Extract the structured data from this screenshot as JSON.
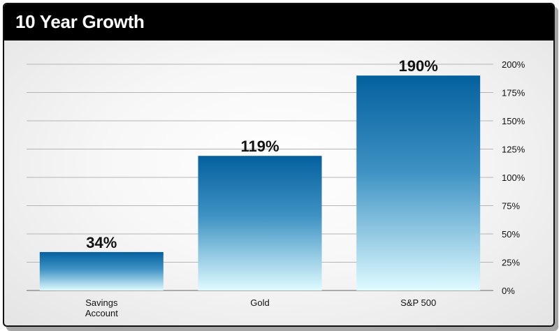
{
  "header": {
    "title": "10 Year Growth"
  },
  "chart_data": {
    "type": "bar",
    "title": "10 Year Growth",
    "xlabel": "",
    "ylabel": "",
    "categories": [
      [
        "Savings",
        "Account"
      ],
      [
        "Gold"
      ],
      [
        "S&P 500"
      ]
    ],
    "values": [
      34,
      119,
      190
    ],
    "data_labels": [
      "34%",
      "119%",
      "190%"
    ],
    "ylim": [
      0,
      200
    ],
    "yticks": [
      0,
      25,
      50,
      75,
      100,
      125,
      150,
      175,
      200
    ],
    "ytick_labels": [
      "0%",
      "25%",
      "50%",
      "75%",
      "100%",
      "125%",
      "150%",
      "175%",
      "200%"
    ],
    "y_axis_position": "right",
    "grid": true,
    "legend": "none",
    "colors": {
      "bar_top": "#04609e",
      "bar_bottom": "#dffbff",
      "grid": "#b5b5b5",
      "text": "#111111"
    }
  }
}
